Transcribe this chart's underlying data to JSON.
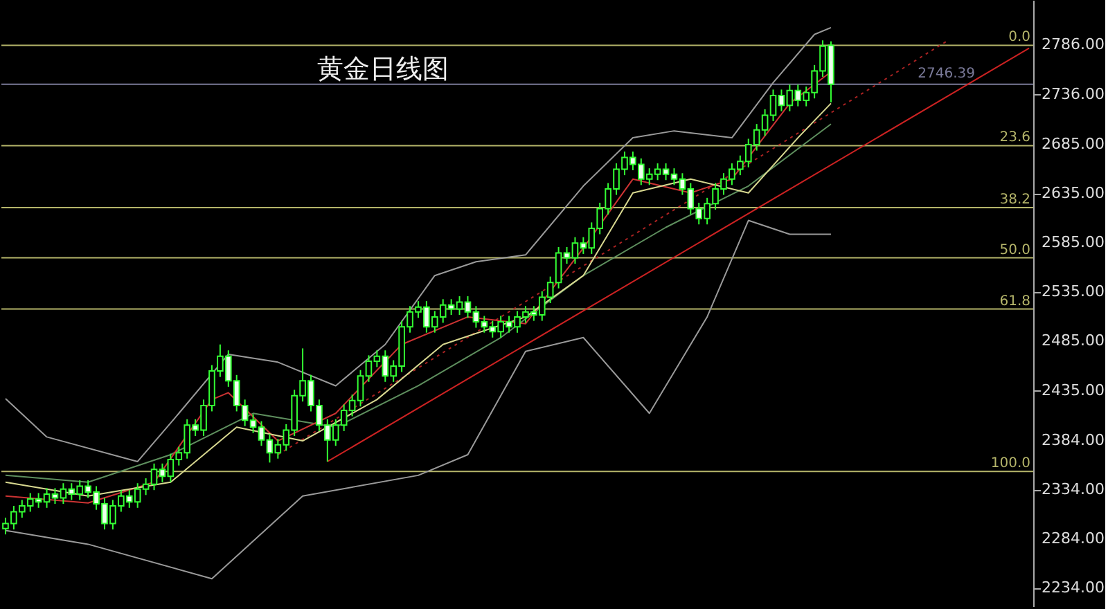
{
  "chart_data": {
    "type": "candlestick",
    "title": "黄金日线图",
    "categories": [
      null,
      null,
      null,
      null,
      null,
      null,
      null,
      null,
      null,
      null,
      null,
      null,
      null,
      null,
      null,
      null,
      null,
      null,
      null,
      null,
      null,
      null,
      null,
      null,
      null,
      null,
      null,
      null,
      null,
      null,
      null,
      null,
      null,
      null,
      null,
      null,
      null,
      null,
      null,
      null,
      null,
      null,
      null,
      null,
      null,
      null,
      null,
      null,
      null,
      null,
      null,
      null,
      null,
      null,
      null,
      null,
      null,
      null,
      null,
      null,
      null,
      null,
      null,
      null,
      null,
      null,
      null,
      null,
      null,
      null,
      null,
      null,
      null,
      null,
      null,
      null,
      null,
      null,
      null,
      null,
      null,
      null,
      null,
      null,
      null,
      null,
      null,
      null,
      null,
      null,
      null,
      null,
      null,
      null,
      null,
      null,
      null,
      null,
      null,
      null,
      null,
      null,
      null,
      null,
      null,
      null,
      null,
      null,
      null,
      null,
      null,
      null,
      null,
      null,
      null,
      null,
      null,
      null,
      null,
      null,
      null,
      null,
      null,
      null,
      null
    ],
    "color": "#33ff33",
    "ohlc": [
      [
        2295,
        2306,
        2289,
        2300
      ],
      [
        2300,
        2318,
        2294,
        2312
      ],
      [
        2312,
        2324,
        2306,
        2318
      ],
      [
        2318,
        2331,
        2312,
        2325
      ],
      [
        2325,
        2331,
        2316,
        2322
      ],
      [
        2322,
        2336,
        2316,
        2330
      ],
      [
        2330,
        2336,
        2320,
        2326
      ],
      [
        2326,
        2341,
        2320,
        2335
      ],
      [
        2335,
        2341,
        2324,
        2330
      ],
      [
        2330,
        2344,
        2324,
        2338
      ],
      [
        2338,
        2344,
        2326,
        2332
      ],
      [
        2332,
        2338,
        2314,
        2320
      ],
      [
        2320,
        2326,
        2294,
        2300
      ],
      [
        2300,
        2324,
        2294,
        2318
      ],
      [
        2318,
        2334,
        2312,
        2328
      ],
      [
        2328,
        2334,
        2316,
        2322
      ],
      [
        2322,
        2341,
        2316,
        2335
      ],
      [
        2335,
        2346,
        2329,
        2340
      ],
      [
        2340,
        2361,
        2334,
        2355
      ],
      [
        2355,
        2361,
        2342,
        2348
      ],
      [
        2348,
        2371,
        2342,
        2365
      ],
      [
        2365,
        2378,
        2359,
        2372
      ],
      [
        2372,
        2406,
        2366,
        2400
      ],
      [
        2400,
        2406,
        2389,
        2395
      ],
      [
        2395,
        2426,
        2389,
        2420
      ],
      [
        2420,
        2461,
        2414,
        2455
      ],
      [
        2455,
        2482,
        2449,
        2470
      ],
      [
        2470,
        2476,
        2439,
        2445
      ],
      [
        2445,
        2451,
        2414,
        2420
      ],
      [
        2420,
        2426,
        2399,
        2405
      ],
      [
        2405,
        2411,
        2392,
        2398
      ],
      [
        2398,
        2404,
        2379,
        2385
      ],
      [
        2385,
        2391,
        2362,
        2372
      ],
      [
        2372,
        2386,
        2366,
        2380
      ],
      [
        2380,
        2401,
        2374,
        2395
      ],
      [
        2395,
        2436,
        2389,
        2430
      ],
      [
        2430,
        2478,
        2424,
        2445
      ],
      [
        2445,
        2451,
        2414,
        2420
      ],
      [
        2420,
        2426,
        2394,
        2400
      ],
      [
        2400,
        2406,
        2363,
        2385
      ],
      [
        2385,
        2406,
        2379,
        2400
      ],
      [
        2400,
        2421,
        2394,
        2415
      ],
      [
        2415,
        2431,
        2409,
        2425
      ],
      [
        2425,
        2456,
        2419,
        2450
      ],
      [
        2450,
        2471,
        2444,
        2465
      ],
      [
        2465,
        2476,
        2459,
        2470
      ],
      [
        2470,
        2476,
        2444,
        2450
      ],
      [
        2450,
        2466,
        2444,
        2460
      ],
      [
        2460,
        2506,
        2454,
        2500
      ],
      [
        2500,
        2521,
        2494,
        2515
      ],
      [
        2515,
        2526,
        2509,
        2520
      ],
      [
        2520,
        2526,
        2494,
        2500
      ],
      [
        2500,
        2516,
        2494,
        2510
      ],
      [
        2510,
        2528,
        2504,
        2522
      ],
      [
        2522,
        2528,
        2512,
        2518
      ],
      [
        2518,
        2531,
        2512,
        2525
      ],
      [
        2525,
        2531,
        2509,
        2515
      ],
      [
        2515,
        2521,
        2499,
        2505
      ],
      [
        2505,
        2511,
        2494,
        2500
      ],
      [
        2500,
        2506,
        2489,
        2495
      ],
      [
        2495,
        2511,
        2489,
        2505
      ],
      [
        2505,
        2511,
        2494,
        2500
      ],
      [
        2500,
        2516,
        2494,
        2510
      ],
      [
        2510,
        2521,
        2504,
        2515
      ],
      [
        2515,
        2521,
        2506,
        2512
      ],
      [
        2512,
        2536,
        2506,
        2530
      ],
      [
        2530,
        2551,
        2524,
        2545
      ],
      [
        2545,
        2581,
        2539,
        2575
      ],
      [
        2575,
        2581,
        2564,
        2570
      ],
      [
        2570,
        2591,
        2564,
        2585
      ],
      [
        2585,
        2591,
        2574,
        2580
      ],
      [
        2580,
        2606,
        2574,
        2600
      ],
      [
        2600,
        2626,
        2594,
        2620
      ],
      [
        2620,
        2646,
        2614,
        2640
      ],
      [
        2640,
        2666,
        2634,
        2660
      ],
      [
        2660,
        2678,
        2654,
        2672
      ],
      [
        2672,
        2678,
        2659,
        2665
      ],
      [
        2665,
        2671,
        2644,
        2650
      ],
      [
        2650,
        2661,
        2644,
        2655
      ],
      [
        2655,
        2666,
        2649,
        2660
      ],
      [
        2660,
        2666,
        2649,
        2655
      ],
      [
        2655,
        2661,
        2644,
        2650
      ],
      [
        2650,
        2656,
        2634,
        2640
      ],
      [
        2640,
        2646,
        2614,
        2620
      ],
      [
        2620,
        2626,
        2604,
        2610
      ],
      [
        2610,
        2631,
        2604,
        2625
      ],
      [
        2625,
        2646,
        2619,
        2640
      ],
      [
        2640,
        2656,
        2634,
        2650
      ],
      [
        2650,
        2666,
        2644,
        2660
      ],
      [
        2660,
        2674,
        2654,
        2668
      ],
      [
        2668,
        2691,
        2662,
        2685
      ],
      [
        2685,
        2706,
        2679,
        2700
      ],
      [
        2700,
        2721,
        2694,
        2715
      ],
      [
        2715,
        2741,
        2709,
        2735
      ],
      [
        2735,
        2741,
        2719,
        2725
      ],
      [
        2725,
        2746,
        2719,
        2740
      ],
      [
        2740,
        2746,
        2724,
        2730
      ],
      [
        2730,
        2744,
        2724,
        2738
      ],
      [
        2738,
        2766,
        2732,
        2760
      ],
      [
        2760,
        2791,
        2754,
        2785
      ],
      [
        2786,
        2790,
        2728,
        2746.39
      ],
      null,
      null,
      null,
      null,
      null,
      null,
      null,
      null,
      null,
      null,
      null,
      null,
      null,
      null,
      null,
      null,
      null,
      null,
      null,
      null,
      null,
      null,
      null,
      null
    ],
    "series": [
      {
        "type": "line",
        "color": "#cc2222",
        "line_style": "solid",
        "values": [
          null,
          null,
          null,
          null,
          null,
          null,
          null,
          null,
          null,
          null,
          null,
          null,
          null,
          null,
          null,
          null,
          null,
          null,
          null,
          null,
          null,
          null,
          null,
          null,
          null,
          null,
          null,
          null,
          null,
          null,
          null,
          null,
          null,
          null,
          null,
          null,
          null,
          null,
          null,
          2363,
          null,
          null,
          null,
          null,
          null,
          null,
          null,
          null,
          null,
          null,
          null,
          null,
          null,
          null,
          null,
          null,
          null,
          null,
          null,
          null,
          null,
          null,
          null,
          null,
          null,
          null,
          null,
          null,
          null,
          null,
          null,
          null,
          null,
          null,
          null,
          null,
          null,
          null,
          null,
          null,
          null,
          null,
          null,
          null,
          null,
          null,
          null,
          null,
          null,
          null,
          null,
          null,
          null,
          null,
          null,
          null,
          null,
          null,
          null,
          null,
          null,
          null,
          null,
          null,
          null,
          null,
          null,
          null,
          null,
          null,
          null,
          null,
          null,
          null,
          null,
          null,
          null,
          null,
          null,
          null,
          null,
          null,
          null,
          null,
          2783
        ]
      },
      {
        "type": "line",
        "color": "#aa2222",
        "line_style": "dotted",
        "values": [
          null,
          null,
          null,
          null,
          null,
          null,
          null,
          null,
          null,
          null,
          null,
          null,
          null,
          null,
          null,
          null,
          null,
          null,
          null,
          null,
          null,
          null,
          null,
          null,
          null,
          null,
          null,
          null,
          null,
          null,
          null,
          null,
          null,
          2370,
          null,
          null,
          null,
          null,
          null,
          null,
          null,
          null,
          null,
          null,
          null,
          null,
          null,
          null,
          null,
          null,
          null,
          null,
          null,
          null,
          null,
          null,
          null,
          null,
          null,
          null,
          null,
          null,
          null,
          null,
          null,
          null,
          null,
          null,
          null,
          null,
          null,
          null,
          null,
          null,
          null,
          null,
          null,
          null,
          null,
          null,
          null,
          null,
          null,
          null,
          null,
          null,
          null,
          null,
          null,
          null,
          null,
          null,
          null,
          null,
          null,
          null,
          null,
          null,
          null,
          null,
          null,
          null,
          null,
          null,
          null,
          null,
          null,
          null,
          null,
          null,
          null,
          null,
          null,
          null,
          2790,
          null,
          null,
          null,
          null,
          null,
          null,
          null,
          null,
          null,
          null
        ]
      },
      {
        "type": "line",
        "color": "#9a9a9a",
        "line_style": "solid",
        "values": [
          2427,
          null,
          null,
          null,
          null,
          2388,
          null,
          null,
          null,
          null,
          null,
          null,
          null,
          null,
          null,
          null,
          2363,
          null,
          null,
          null,
          null,
          2412,
          null,
          null,
          null,
          null,
          null,
          2472,
          null,
          null,
          null,
          null,
          null,
          2464,
          null,
          null,
          null,
          null,
          null,
          null,
          2440,
          null,
          null,
          null,
          null,
          null,
          2482,
          null,
          null,
          null,
          null,
          null,
          2552,
          null,
          null,
          null,
          null,
          2566,
          null,
          null,
          null,
          null,
          null,
          2573,
          null,
          null,
          null,
          null,
          null,
          null,
          2643,
          null,
          null,
          null,
          null,
          null,
          2692,
          null,
          null,
          null,
          null,
          2699,
          null,
          null,
          null,
          null,
          null,
          null,
          2692,
          null,
          null,
          null,
          null,
          2748,
          null,
          null,
          null,
          null,
          2797,
          null,
          2804,
          null,
          null,
          null,
          null,
          null,
          null,
          null,
          null,
          null,
          null,
          null,
          null,
          null,
          null,
          null,
          null,
          null,
          null,
          null,
          null,
          null,
          null,
          null,
          null
        ]
      },
      {
        "type": "line",
        "color": "#9a9a9a",
        "line_style": "solid",
        "values": [
          2293,
          null,
          null,
          null,
          null,
          null,
          null,
          null,
          null,
          null,
          2279,
          null,
          null,
          null,
          null,
          null,
          null,
          null,
          null,
          null,
          null,
          null,
          null,
          null,
          null,
          2244,
          null,
          null,
          null,
          null,
          null,
          null,
          null,
          null,
          null,
          null,
          2328,
          null,
          null,
          null,
          null,
          null,
          null,
          null,
          null,
          null,
          null,
          null,
          null,
          null,
          2349,
          null,
          null,
          null,
          null,
          null,
          2370,
          null,
          null,
          null,
          null,
          null,
          null,
          2475,
          null,
          null,
          null,
          null,
          null,
          null,
          2489,
          null,
          null,
          null,
          null,
          null,
          null,
          null,
          2412,
          null,
          null,
          null,
          null,
          null,
          null,
          2510,
          null,
          null,
          null,
          null,
          2608,
          null,
          null,
          null,
          null,
          2594,
          null,
          null,
          null,
          null,
          2594,
          null,
          null,
          null,
          null,
          null,
          null,
          null,
          null,
          null,
          null,
          null,
          null,
          null,
          null,
          null,
          null,
          null,
          null,
          null,
          null,
          null,
          null,
          null,
          null
        ]
      },
      {
        "type": "line",
        "color": "#5e8f5e",
        "line_style": "solid",
        "values": [
          2349,
          null,
          null,
          null,
          null,
          null,
          null,
          null,
          null,
          null,
          2342,
          null,
          null,
          null,
          null,
          null,
          null,
          null,
          null,
          null,
          2370,
          null,
          null,
          null,
          null,
          null,
          null,
          null,
          null,
          null,
          2412,
          null,
          null,
          null,
          null,
          null,
          null,
          null,
          null,
          null,
          2398,
          null,
          null,
          null,
          null,
          null,
          null,
          null,
          null,
          null,
          2440,
          null,
          null,
          null,
          null,
          null,
          null,
          null,
          null,
          null,
          2489,
          null,
          null,
          null,
          null,
          null,
          null,
          null,
          null,
          null,
          2552,
          null,
          null,
          null,
          null,
          null,
          null,
          null,
          null,
          null,
          2601,
          null,
          null,
          null,
          null,
          null,
          null,
          null,
          null,
          null,
          2643,
          null,
          null,
          null,
          null,
          null,
          null,
          null,
          null,
          null,
          2706,
          null,
          null,
          null,
          null,
          null,
          null,
          null,
          null,
          null,
          null,
          null,
          null,
          null,
          null,
          null,
          null,
          null,
          null,
          null,
          null,
          null,
          null,
          null,
          null
        ]
      },
      {
        "type": "line",
        "color": "#cc3333",
        "line_style": "solid",
        "values": [
          2328,
          null,
          null,
          null,
          null,
          null,
          null,
          null,
          null,
          null,
          2321,
          null,
          null,
          null,
          null,
          null,
          null,
          null,
          2342,
          null,
          null,
          null,
          null,
          null,
          null,
          2426,
          null,
          2433,
          null,
          null,
          null,
          null,
          null,
          2384,
          null,
          null,
          null,
          null,
          null,
          null,
          2412,
          null,
          null,
          null,
          null,
          null,
          null,
          null,
          2482,
          null,
          null,
          null,
          null,
          null,
          null,
          null,
          2510,
          null,
          null,
          null,
          null,
          null,
          null,
          2503,
          null,
          null,
          null,
          null,
          null,
          null,
          2580,
          null,
          null,
          null,
          null,
          null,
          2650,
          null,
          null,
          null,
          null,
          null,
          null,
          2636,
          null,
          null,
          null,
          null,
          2650,
          null,
          null,
          null,
          null,
          null,
          null,
          2727,
          null,
          null,
          null,
          null,
          2759,
          null,
          null,
          null,
          null,
          null,
          null,
          null,
          null,
          null,
          null,
          null,
          null,
          null,
          null,
          null,
          null,
          null,
          null,
          null,
          null,
          null,
          null,
          null,
          null
        ]
      },
      {
        "type": "line",
        "color": "#d8d890",
        "line_style": "solid",
        "values": [
          2342,
          null,
          null,
          null,
          null,
          null,
          null,
          null,
          null,
          null,
          2328,
          null,
          null,
          null,
          null,
          null,
          null,
          null,
          null,
          null,
          2342,
          null,
          null,
          null,
          null,
          null,
          null,
          null,
          2398,
          null,
          null,
          null,
          null,
          null,
          null,
          null,
          2384,
          null,
          null,
          null,
          null,
          null,
          null,
          null,
          null,
          2426,
          null,
          null,
          null,
          null,
          null,
          null,
          null,
          2482,
          null,
          null,
          null,
          null,
          null,
          null,
          null,
          null,
          null,
          2510,
          null,
          null,
          null,
          null,
          null,
          null,
          2552,
          null,
          null,
          null,
          null,
          null,
          2636,
          null,
          null,
          null,
          null,
          null,
          null,
          2650,
          null,
          null,
          null,
          null,
          null,
          null,
          2636,
          null,
          null,
          null,
          null,
          null,
          2692,
          null,
          null,
          null,
          2727,
          null,
          null,
          null,
          null,
          null,
          null,
          null,
          null,
          null,
          null,
          null,
          null,
          null,
          null,
          null,
          null,
          null,
          null,
          null,
          null,
          null,
          null,
          null,
          null
        ]
      }
    ],
    "annotations": [
      {
        "text": "0.0",
        "y": 2786
      },
      {
        "text": "23.6",
        "y": 2684
      },
      {
        "text": "38.2",
        "y": 2621
      },
      {
        "text": "50.0",
        "y": 2570
      },
      {
        "text": "61.8",
        "y": 2518
      },
      {
        "text": "100.0",
        "y": 2353
      }
    ],
    "ref_lines": [
      {
        "axis": "y",
        "value": 2786,
        "color": "#b5b56a"
      },
      {
        "axis": "y",
        "value": 2684,
        "color": "#b5b56a"
      },
      {
        "axis": "y",
        "value": 2621,
        "color": "#b5b56a"
      },
      {
        "axis": "y",
        "value": 2570,
        "color": "#b5b56a"
      },
      {
        "axis": "y",
        "value": 2518,
        "color": "#b5b56a"
      },
      {
        "axis": "y",
        "value": 2353,
        "color": "#b5b56a"
      },
      {
        "axis": "y",
        "value": 2746.39,
        "label": "2746.39",
        "color": "#7a7a99"
      }
    ],
    "ylim": [
      2216,
      2832
    ],
    "yticks": [
      {
        "value": 2234,
        "label": "2234.00"
      },
      {
        "value": 2284,
        "label": "2284.00"
      },
      {
        "value": 2334,
        "label": "2334.00"
      },
      {
        "value": 2384,
        "label": "2384.00"
      },
      {
        "value": 2435,
        "label": "2435.00"
      },
      {
        "value": 2485,
        "label": "2485.00"
      },
      {
        "value": 2535,
        "label": "2535.00"
      },
      {
        "value": 2585,
        "label": "2585.00"
      },
      {
        "value": 2635,
        "label": "2635.00"
      },
      {
        "value": 2685,
        "label": "2685.00"
      },
      {
        "value": 2736,
        "label": "2736.00"
      },
      {
        "value": 2786,
        "label": "2786.00"
      }
    ],
    "grid": false,
    "legend": false
  }
}
